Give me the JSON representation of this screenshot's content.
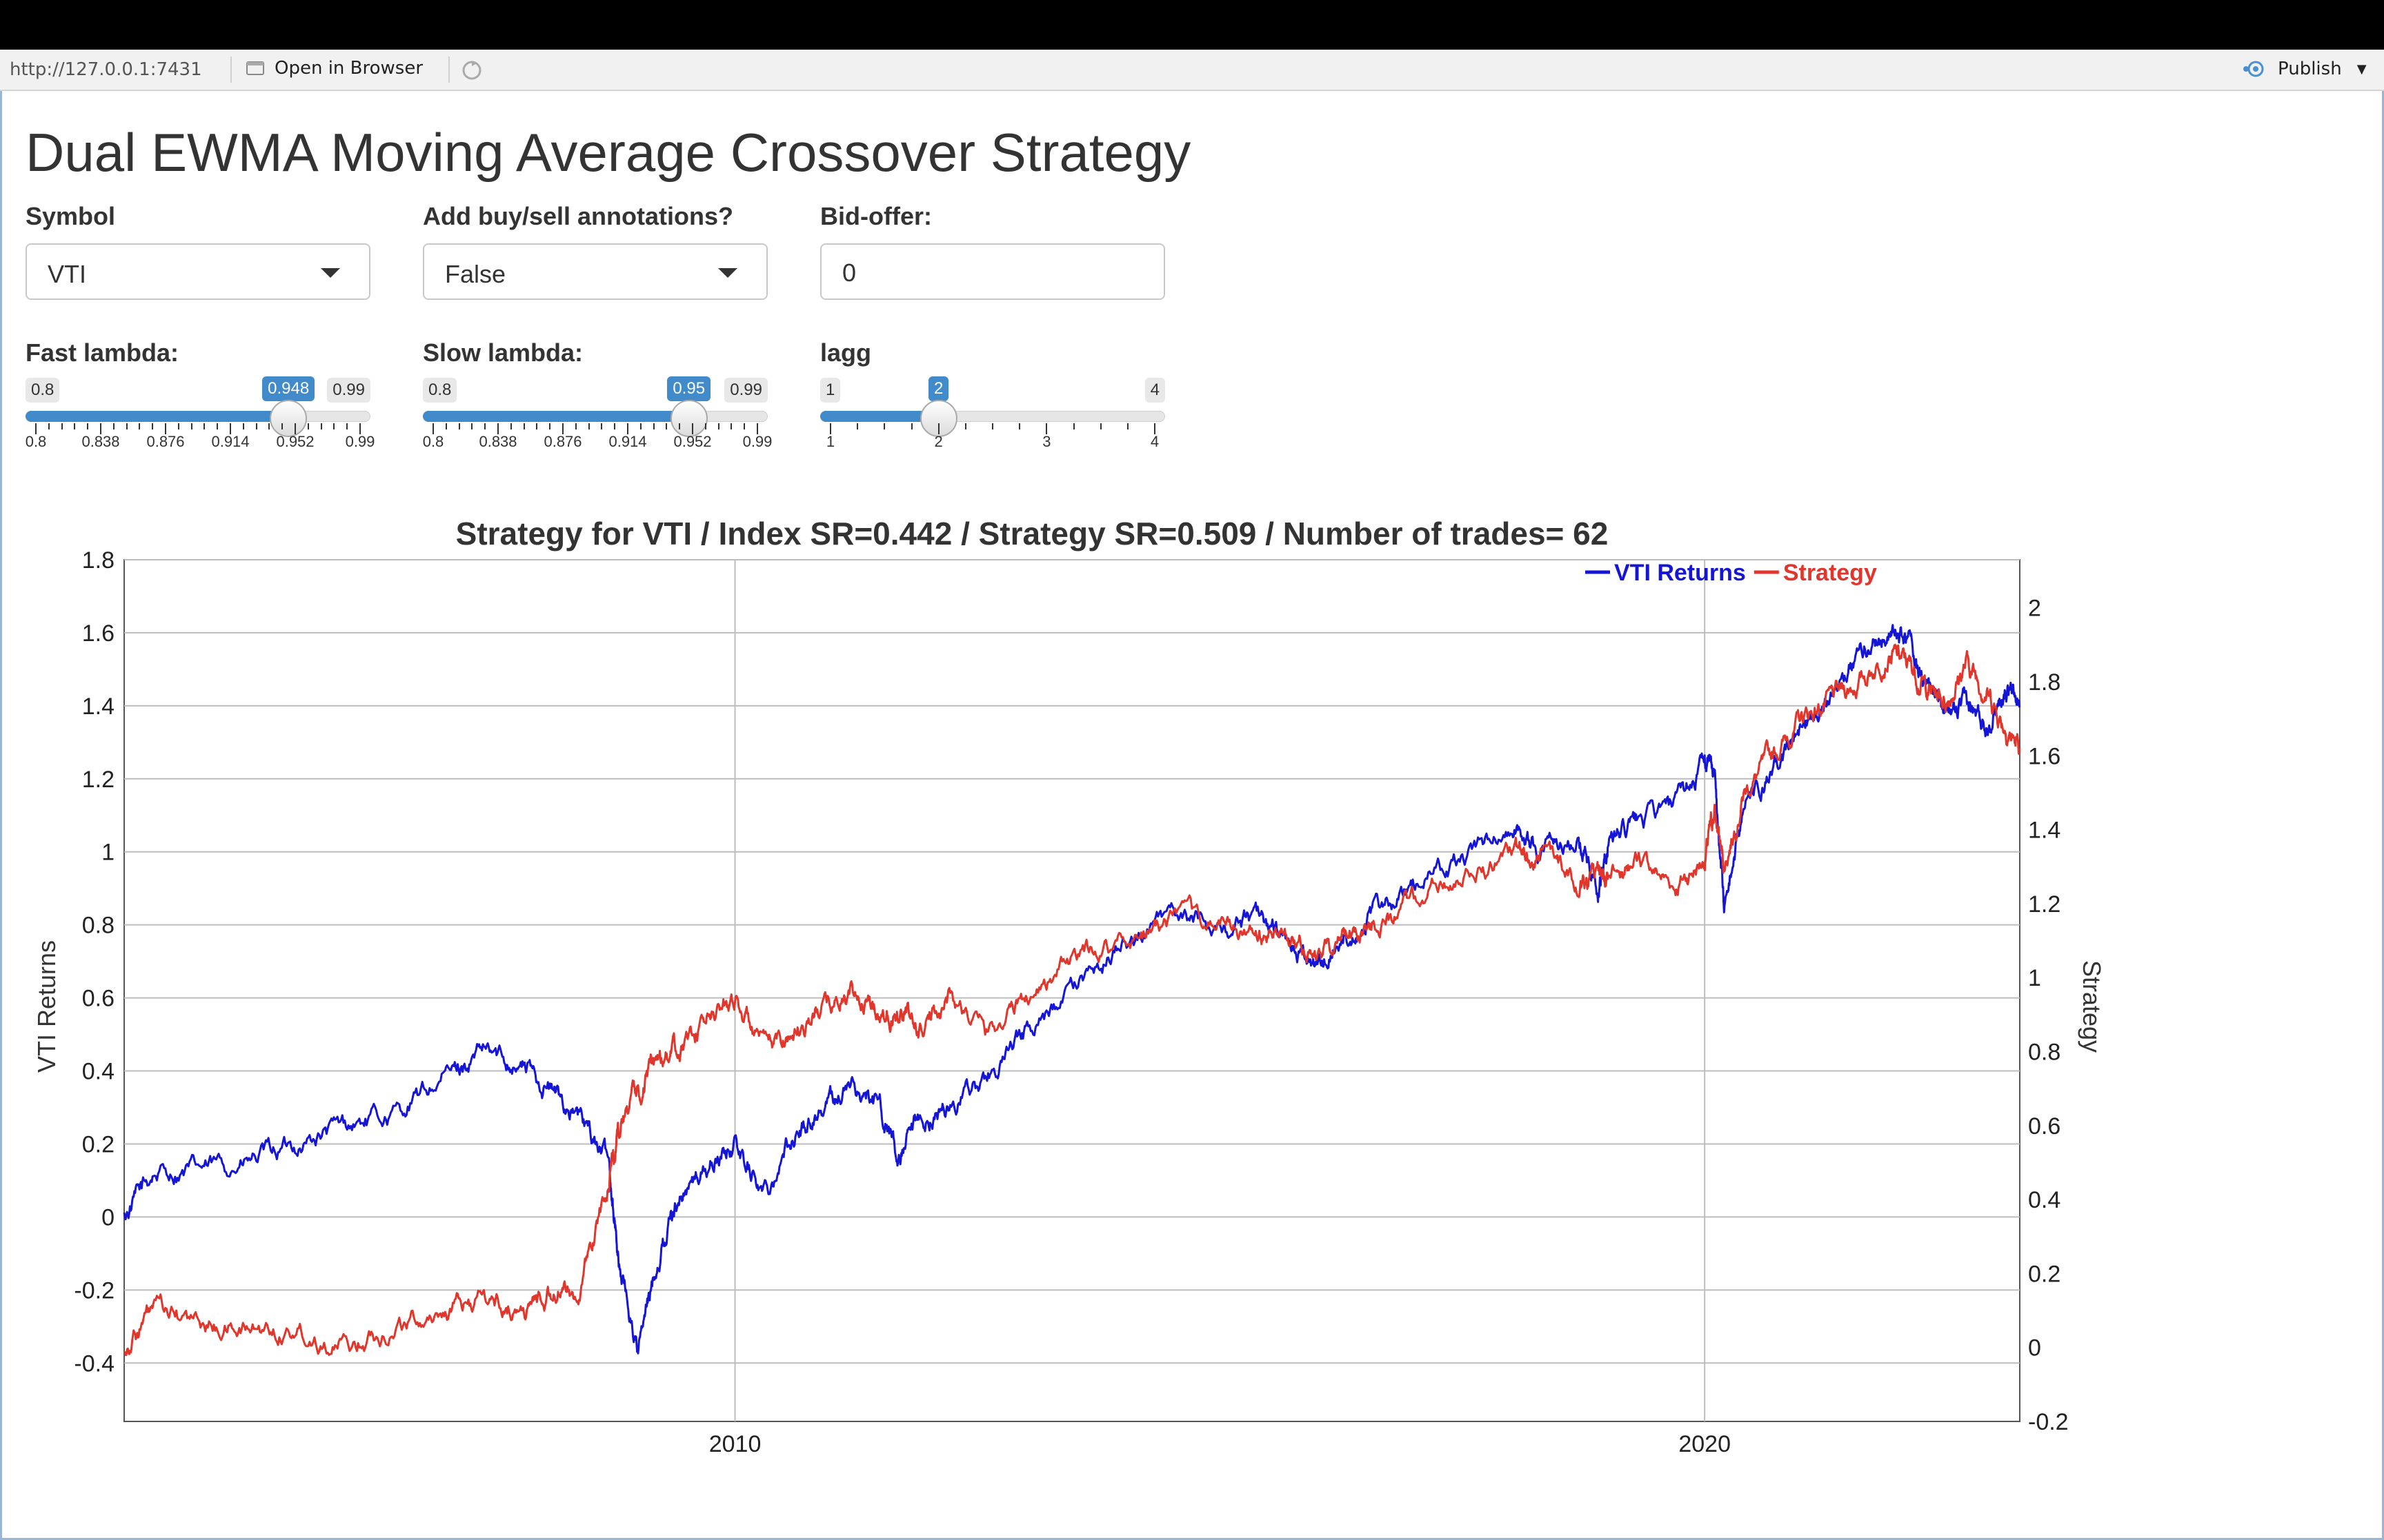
{
  "viewer": {
    "url": "http://127.0.0.1:7431",
    "open_in_browser": "Open in Browser",
    "publish": "Publish"
  },
  "page_title": "Dual EWMA Moving Average Crossover Strategy",
  "controls": {
    "symbol": {
      "label": "Symbol",
      "value": "VTI"
    },
    "annotations": {
      "label": "Add buy/sell annotations?",
      "value": "False"
    },
    "bid_offer": {
      "label": "Bid-offer:",
      "value": "0"
    },
    "fast_lambda": {
      "label": "Fast lambda:",
      "min": "0.8",
      "max": "0.99",
      "value": "0.948",
      "fraction": 0.779,
      "ticks": [
        "0.8",
        "0.838",
        "0.876",
        "0.914",
        "0.952",
        "0.99"
      ]
    },
    "slow_lambda": {
      "label": "Slow lambda:",
      "min": "0.8",
      "max": "0.99",
      "value": "0.95",
      "fraction": 0.789,
      "ticks": [
        "0.8",
        "0.838",
        "0.876",
        "0.914",
        "0.952",
        "0.99"
      ]
    },
    "lagg": {
      "label": "lagg",
      "min": "1",
      "max": "4",
      "value": "2",
      "fraction": 0.333,
      "ticks": [
        "1",
        "2",
        "3",
        "4"
      ]
    }
  },
  "colors": {
    "accent": "#428bca",
    "vti": "#1515d6",
    "strategy": "#e0362c"
  },
  "chart_data": {
    "type": "line",
    "title": "Strategy for VTI / Index SR=0.442 / Strategy SR=0.509 / Number of trades= 62",
    "xlabel": "",
    "ylabel_left": "VTI Returns",
    "ylabel_right": "Strategy",
    "x_ticks": [
      "2010",
      "2020"
    ],
    "y_left_ticks": [
      "1.8",
      "1.6",
      "1.4",
      "1.2",
      "1",
      "0.8",
      "0.6",
      "0.4",
      "0.2",
      "0",
      "-0.2",
      "-0.4"
    ],
    "y_right_ticks": [
      "2",
      "1.8",
      "1.6",
      "1.4",
      "1.2",
      "1",
      "0.8",
      "0.6",
      "0.4",
      "0.2",
      "0",
      "-0.2"
    ],
    "ylim_left": [
      -0.56,
      1.8
    ],
    "ylim_right": [
      -0.2,
      2.13
    ],
    "xlim": [
      2003.7,
      2023.25
    ],
    "legend": "top-right",
    "grid": true,
    "series": [
      {
        "name": "VTI Returns",
        "axis": "left",
        "x": [
          2003.7,
          2004.0,
          2004.5,
          2005.0,
          2005.5,
          2006.0,
          2006.5,
          2007.0,
          2007.4,
          2007.8,
          2008.1,
          2008.4,
          2008.7,
          2008.8,
          2009.0,
          2009.2,
          2009.4,
          2009.7,
          2010.0,
          2010.3,
          2010.6,
          2010.9,
          2011.2,
          2011.5,
          2011.7,
          2011.9,
          2012.2,
          2012.6,
          2013.0,
          2013.5,
          2014.0,
          2014.5,
          2015.0,
          2015.4,
          2015.7,
          2016.0,
          2016.3,
          2016.6,
          2017.0,
          2017.5,
          2018.0,
          2018.3,
          2018.7,
          2018.9,
          2019.0,
          2019.3,
          2019.7,
          2020.0,
          2020.1,
          2020.2,
          2020.4,
          2020.7,
          2021.0,
          2021.3,
          2021.6,
          2021.9,
          2022.1,
          2022.3,
          2022.5,
          2022.7,
          2022.9,
          2023.1,
          2023.25
        ],
        "y": [
          0.0,
          0.12,
          0.13,
          0.15,
          0.2,
          0.25,
          0.28,
          0.38,
          0.45,
          0.42,
          0.35,
          0.27,
          0.15,
          -0.12,
          -0.37,
          -0.12,
          0.05,
          0.13,
          0.2,
          0.07,
          0.22,
          0.3,
          0.36,
          0.3,
          0.15,
          0.25,
          0.3,
          0.38,
          0.5,
          0.62,
          0.75,
          0.82,
          0.8,
          0.82,
          0.75,
          0.68,
          0.78,
          0.83,
          0.9,
          0.98,
          1.08,
          1.0,
          1.05,
          0.9,
          1.02,
          1.08,
          1.12,
          1.25,
          1.22,
          0.85,
          1.12,
          1.2,
          1.35,
          1.45,
          1.55,
          1.6,
          1.58,
          1.45,
          1.38,
          1.4,
          1.35,
          1.45,
          1.4
        ]
      },
      {
        "name": "Strategy",
        "axis": "right",
        "x": [
          2003.7,
          2004.0,
          2004.5,
          2005.0,
          2005.5,
          2006.0,
          2006.5,
          2007.0,
          2007.4,
          2007.8,
          2008.1,
          2008.4,
          2008.7,
          2008.8,
          2009.0,
          2009.2,
          2009.4,
          2009.7,
          2010.0,
          2010.3,
          2010.6,
          2010.9,
          2011.2,
          2011.5,
          2011.7,
          2011.9,
          2012.2,
          2012.6,
          2013.0,
          2013.5,
          2014.0,
          2014.5,
          2015.0,
          2015.4,
          2015.7,
          2016.0,
          2016.3,
          2016.6,
          2017.0,
          2017.5,
          2018.0,
          2018.3,
          2018.7,
          2018.9,
          2019.0,
          2019.3,
          2019.7,
          2020.0,
          2020.1,
          2020.2,
          2020.4,
          2020.7,
          2021.0,
          2021.3,
          2021.6,
          2021.9,
          2022.1,
          2022.3,
          2022.5,
          2022.7,
          2022.9,
          2023.1,
          2023.25
        ],
        "y": [
          0.0,
          0.1,
          0.06,
          0.05,
          0.05,
          0.0,
          0.06,
          0.1,
          0.13,
          0.1,
          0.15,
          0.15,
          0.45,
          0.6,
          0.7,
          0.78,
          0.8,
          0.88,
          0.95,
          0.8,
          0.85,
          0.92,
          0.95,
          0.9,
          0.92,
          0.85,
          0.95,
          0.85,
          0.95,
          1.05,
          1.1,
          1.15,
          1.15,
          1.1,
          1.12,
          1.05,
          1.12,
          1.15,
          1.2,
          1.28,
          1.32,
          1.35,
          1.25,
          1.28,
          1.25,
          1.32,
          1.25,
          1.32,
          1.45,
          1.3,
          1.5,
          1.6,
          1.7,
          1.75,
          1.8,
          1.88,
          1.85,
          1.78,
          1.75,
          1.85,
          1.78,
          1.68,
          1.62
        ]
      }
    ]
  }
}
